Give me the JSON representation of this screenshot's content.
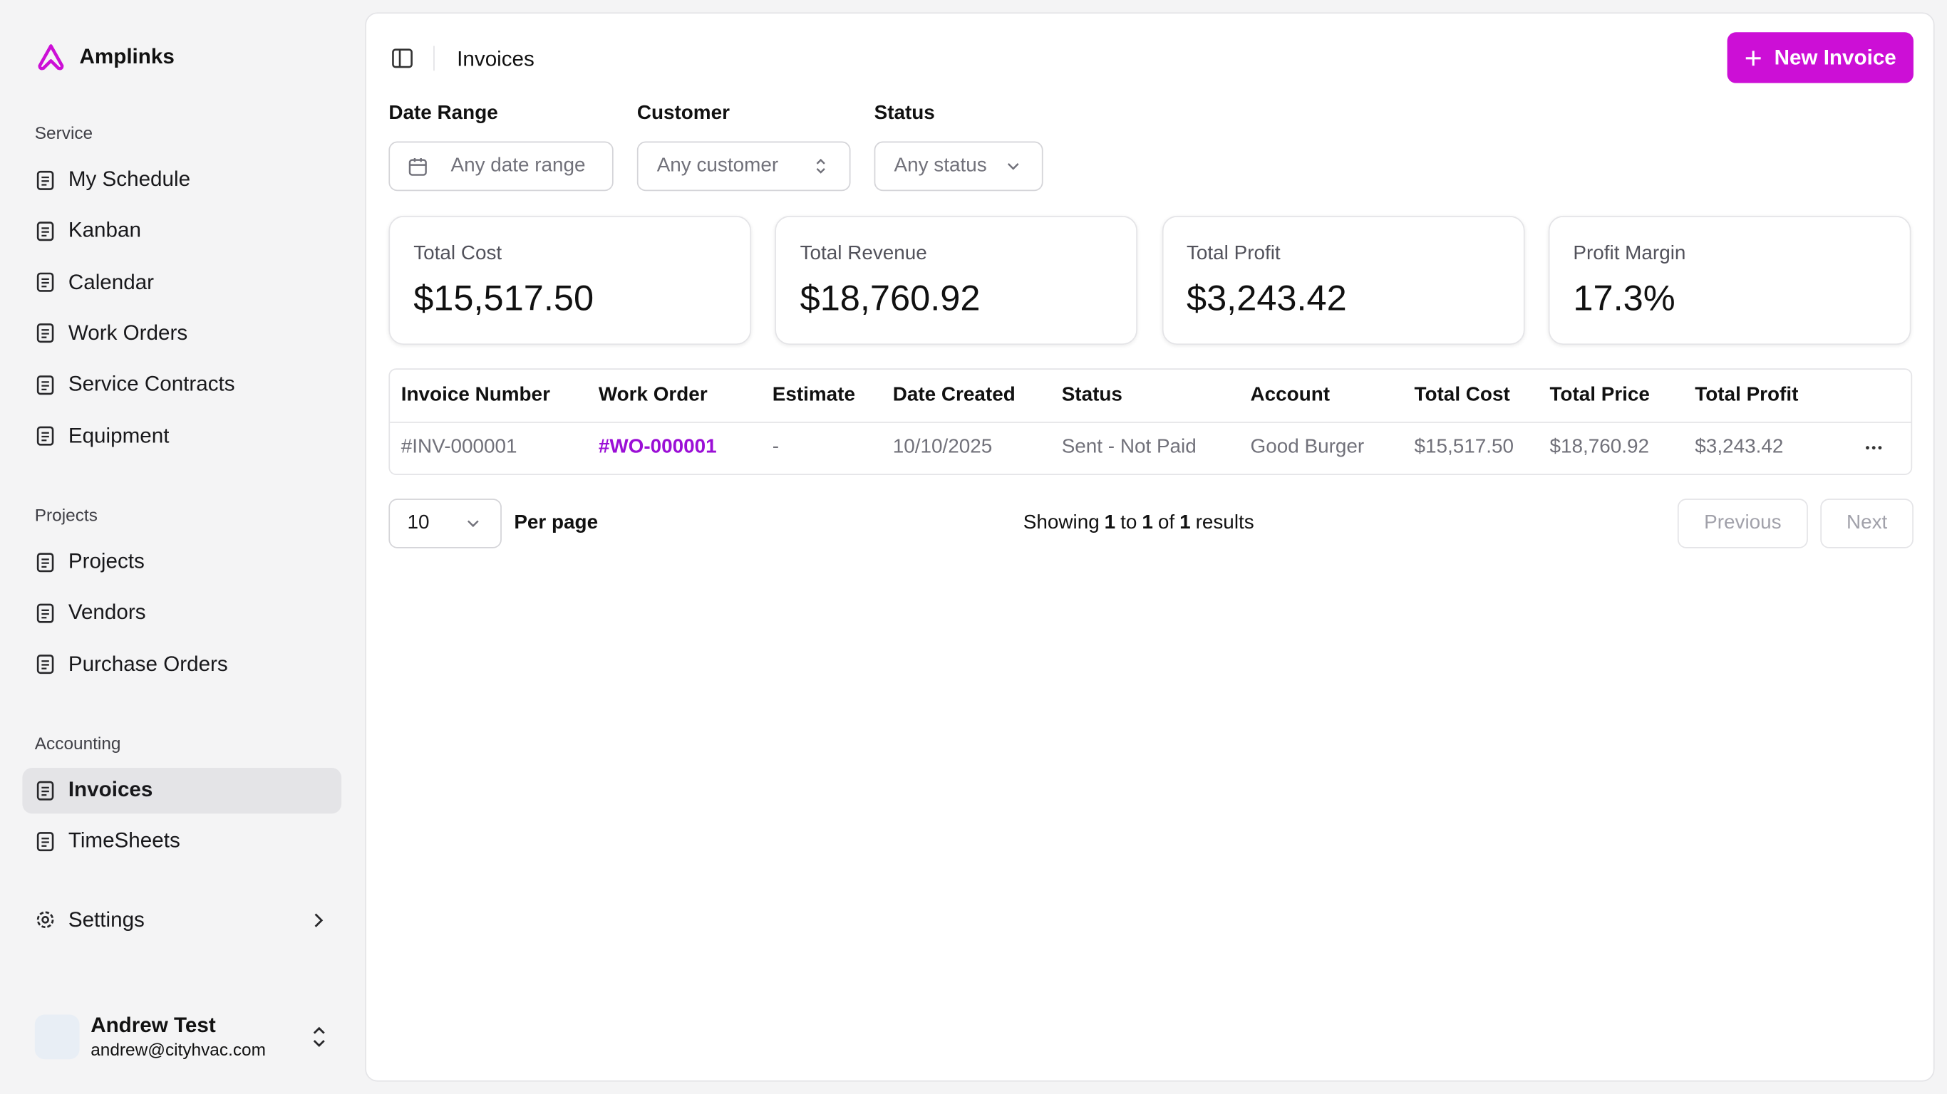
{
  "sidebar": {
    "brand": "Amplinks",
    "sections": [
      {
        "title": "Service",
        "items": [
          "My Schedule",
          "Kanban",
          "Calendar",
          "Work Orders",
          "Service Contracts",
          "Equipment"
        ]
      },
      {
        "title": "Projects",
        "items": [
          "Projects",
          "Vendors",
          "Purchase Orders"
        ]
      },
      {
        "title": "Accounting",
        "items": [
          "Invoices",
          "TimeSheets"
        ]
      }
    ],
    "settings": "Settings",
    "active": "Invoices",
    "user": {
      "name": "Andrew Test",
      "email": "andrew@cityhvac.com"
    }
  },
  "header": {
    "title": "Invoices",
    "button": "New Invoice"
  },
  "filters": [
    {
      "label": "Date Range",
      "placeholder": "Any date range"
    },
    {
      "label": "Customer",
      "placeholder": "Any customer"
    },
    {
      "label": "Status",
      "placeholder": "Any status"
    }
  ],
  "stats": [
    {
      "label": "Total Cost",
      "value": "$15,517.50"
    },
    {
      "label": "Total Revenue",
      "value": "$18,760.92"
    },
    {
      "label": "Total Profit",
      "value": "$3,243.42"
    },
    {
      "label": "Profit Margin",
      "value": "17.3%"
    }
  ],
  "table": {
    "columns": [
      "Invoice Number",
      "Work Order",
      "Estimate",
      "Date Created",
      "Status",
      "Account",
      "Total Cost",
      "Total Price",
      "Total Profit"
    ],
    "rows": [
      [
        "#INV-000001",
        "#WO-000001",
        "-",
        "10/10/2025",
        "Sent - Not Paid",
        "Good Burger",
        "$15,517.50",
        "$18,760.92",
        "$3,243.42"
      ]
    ]
  },
  "pagination": {
    "per_page_value": "10",
    "per_page_label": "Per page",
    "summary": [
      "Showing",
      "1",
      "to",
      "1",
      "of",
      "1",
      "results"
    ],
    "previous": "Previous",
    "next": "Next"
  }
}
